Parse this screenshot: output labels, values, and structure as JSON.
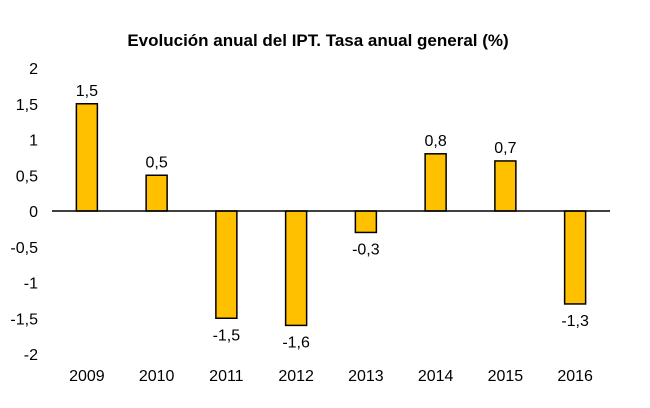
{
  "chart_data": {
    "type": "bar",
    "title": "Evolución anual del IPT. Tasa anual general (%)",
    "categories": [
      "2009",
      "2010",
      "2011",
      "2012",
      "2013",
      "2014",
      "2015",
      "2016"
    ],
    "values": [
      1.5,
      0.5,
      -1.5,
      -1.6,
      -0.3,
      0.8,
      0.7,
      -1.3
    ],
    "data_labels": [
      "1,5",
      "0,5",
      "-1,5",
      "-1,6",
      "-0,3",
      "0,8",
      "0,7",
      "-1,3"
    ],
    "y_ticks": [
      "2",
      "1,5",
      "1",
      "0,5",
      "0",
      "-0,5",
      "-1",
      "-1,5",
      "-2"
    ],
    "y_tick_values": [
      2,
      1.5,
      1,
      0.5,
      0,
      -0.5,
      -1,
      -1.5,
      -2
    ],
    "ylim": [
      -2,
      2
    ],
    "grid": false,
    "legend": "none",
    "xlabel": "",
    "ylabel": "",
    "bar_color": "#FFC000",
    "bar_stroke": "#000000"
  }
}
